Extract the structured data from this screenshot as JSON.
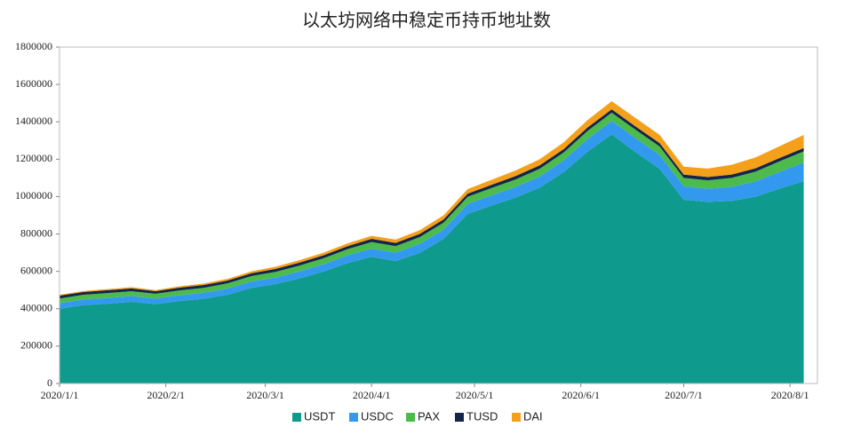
{
  "chart_data": {
    "type": "stacked_area",
    "title": "以太坊网络中稳定币持币地址数",
    "x": [
      "2020/1/1",
      "2020/1/8",
      "2020/1/15",
      "2020/1/22",
      "2020/1/29",
      "2020/2/5",
      "2020/2/12",
      "2020/2/19",
      "2020/2/26",
      "2020/3/4",
      "2020/3/11",
      "2020/3/18",
      "2020/3/25",
      "2020/4/1",
      "2020/4/8",
      "2020/4/15",
      "2020/4/22",
      "2020/4/29",
      "2020/5/6",
      "2020/5/13",
      "2020/5/20",
      "2020/5/27",
      "2020/6/3",
      "2020/6/10",
      "2020/6/17",
      "2020/6/24",
      "2020/7/1",
      "2020/7/8",
      "2020/7/15",
      "2020/7/22",
      "2020/7/29",
      "2020/8/5"
    ],
    "xlim": [
      "2020/1/1",
      "2020/8/9"
    ],
    "xticks": [
      "2020/1/1",
      "2020/2/1",
      "2020/3/1",
      "2020/4/1",
      "2020/5/1",
      "2020/6/1",
      "2020/7/1",
      "2020/8/1"
    ],
    "ylim": [
      0,
      1800000
    ],
    "yticks": [
      0,
      200000,
      400000,
      600000,
      800000,
      1000000,
      1200000,
      1400000,
      1600000,
      1800000
    ],
    "grid": false,
    "legend": "bottom",
    "series": [
      {
        "name": "USDT",
        "color": "#0f9a8e",
        "values": [
          400000,
          420000,
          427000,
          437000,
          425000,
          441000,
          453000,
          475000,
          512000,
          532000,
          563000,
          599000,
          645000,
          678000,
          655000,
          699000,
          774000,
          908000,
          952000,
          995000,
          1048000,
          1131000,
          1241000,
          1333000,
          1237000,
          1149000,
          983000,
          972000,
          977000,
          1000000,
          1043000,
          1082000
        ]
      },
      {
        "name": "USDC",
        "color": "#3399ee",
        "values": [
          30000,
          30000,
          31000,
          31000,
          30000,
          31000,
          32000,
          33000,
          34000,
          35000,
          37000,
          39000,
          41000,
          44000,
          45000,
          48000,
          50000,
          53000,
          55000,
          57000,
          60000,
          63000,
          68000,
          72000,
          75000,
          74000,
          72000,
          70000,
          75000,
          82000,
          90000,
          100000
        ]
      },
      {
        "name": "PAX",
        "color": "#4cbb4c",
        "values": [
          25000,
          25000,
          26000,
          26000,
          25000,
          26000,
          27000,
          28000,
          29000,
          30000,
          31000,
          32000,
          33000,
          35000,
          35000,
          36000,
          37000,
          38000,
          39000,
          40000,
          41000,
          42000,
          43000,
          44000,
          45000,
          45000,
          45000,
          45000,
          48000,
          52000,
          56000,
          60000
        ]
      },
      {
        "name": "TUSD",
        "color": "#14254a",
        "values": [
          15000,
          15000,
          15000,
          15000,
          14000,
          15000,
          15000,
          15000,
          15000,
          16000,
          16000,
          16000,
          16000,
          17000,
          17000,
          17000,
          17000,
          17000,
          17000,
          18000,
          18000,
          18000,
          18000,
          18000,
          18000,
          18000,
          18000,
          18000,
          18000,
          18000,
          18000,
          18000
        ]
      },
      {
        "name": "DAI",
        "color": "#f5a01a",
        "values": [
          5000,
          5000,
          6000,
          6000,
          6000,
          7000,
          8000,
          9000,
          10000,
          12000,
          13000,
          14000,
          15000,
          16000,
          18000,
          20000,
          22000,
          24000,
          27000,
          30000,
          33000,
          36000,
          40000,
          43000,
          45000,
          44000,
          42000,
          45000,
          52000,
          58000,
          63000,
          70000
        ]
      }
    ]
  }
}
